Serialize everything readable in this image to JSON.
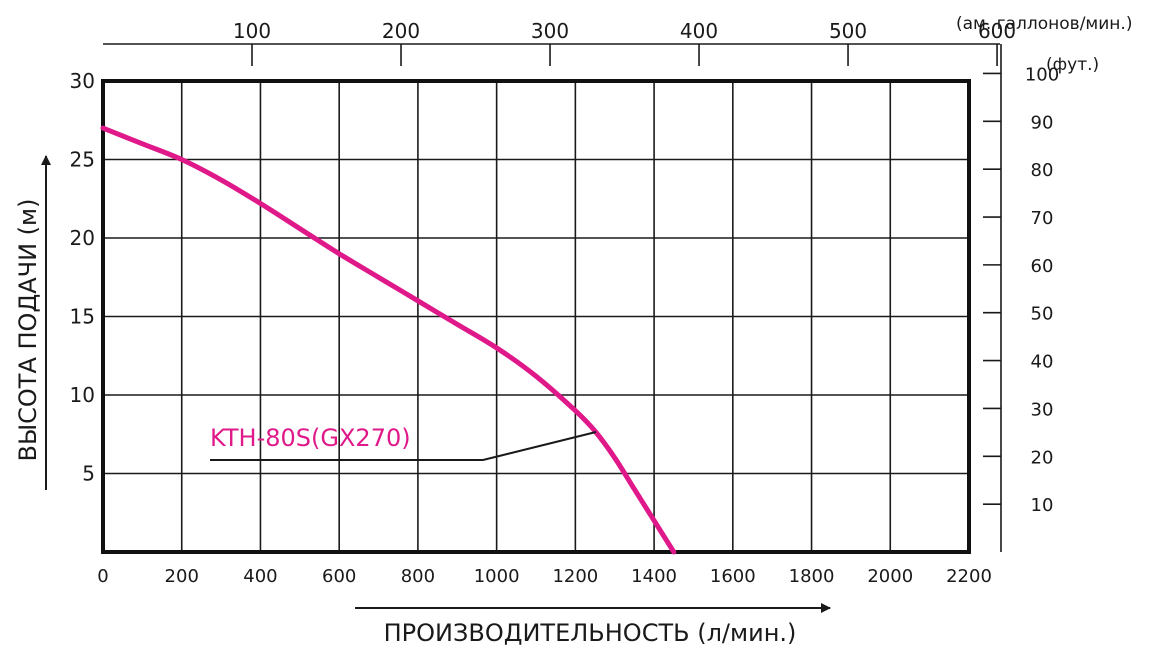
{
  "chart_data": {
    "type": "line",
    "xlabel": "ПРОИЗВОДИТЕЛЬНОСТЬ (л/мин.)",
    "ylabel": "ВЫСОТА ПОДАЧИ (м)",
    "xlim": [
      0,
      2200
    ],
    "ylim": [
      0,
      30
    ],
    "x_ticks": [
      "0",
      "200",
      "400",
      "600",
      "800",
      "1000",
      "1200",
      "1400",
      "1600",
      "1800",
      "2000",
      "2200"
    ],
    "y_ticks": [
      "5",
      "10",
      "15",
      "20",
      "25",
      "30"
    ],
    "grid": true,
    "top_axis": {
      "unit": "(ам. галлонов/мин.)",
      "ticks": [
        {
          "label": "100",
          "value": 100
        },
        {
          "label": "200",
          "value": 200
        },
        {
          "label": "300",
          "value": 300
        },
        {
          "label": "400",
          "value": 400
        },
        {
          "label": "500",
          "value": 500
        },
        {
          "label": "600",
          "value": 600
        }
      ]
    },
    "right_axis": {
      "unit": "(фут.)",
      "ticks": [
        {
          "label": "10",
          "value": 10
        },
        {
          "label": "20",
          "value": 20
        },
        {
          "label": "30",
          "value": 30
        },
        {
          "label": "40",
          "value": 40
        },
        {
          "label": "50",
          "value": 50
        },
        {
          "label": "60",
          "value": 60
        },
        {
          "label": "70",
          "value": 70
        },
        {
          "label": "80",
          "value": 80
        },
        {
          "label": "90",
          "value": 90
        },
        {
          "label": "100",
          "value": 100
        }
      ]
    },
    "series": [
      {
        "name": "KTH-80S(GX270)",
        "color": "#e0198a",
        "x": [
          0,
          100,
          200,
          300,
          400,
          500,
          600,
          700,
          800,
          900,
          1000,
          1100,
          1200,
          1250,
          1300,
          1350,
          1400,
          1450
        ],
        "y": [
          27,
          26,
          25,
          23.7,
          22.2,
          20.6,
          19.0,
          17.5,
          16.0,
          14.5,
          13.0,
          11.2,
          9.0,
          7.7,
          6.0,
          4.0,
          2.0,
          0
        ]
      }
    ]
  }
}
